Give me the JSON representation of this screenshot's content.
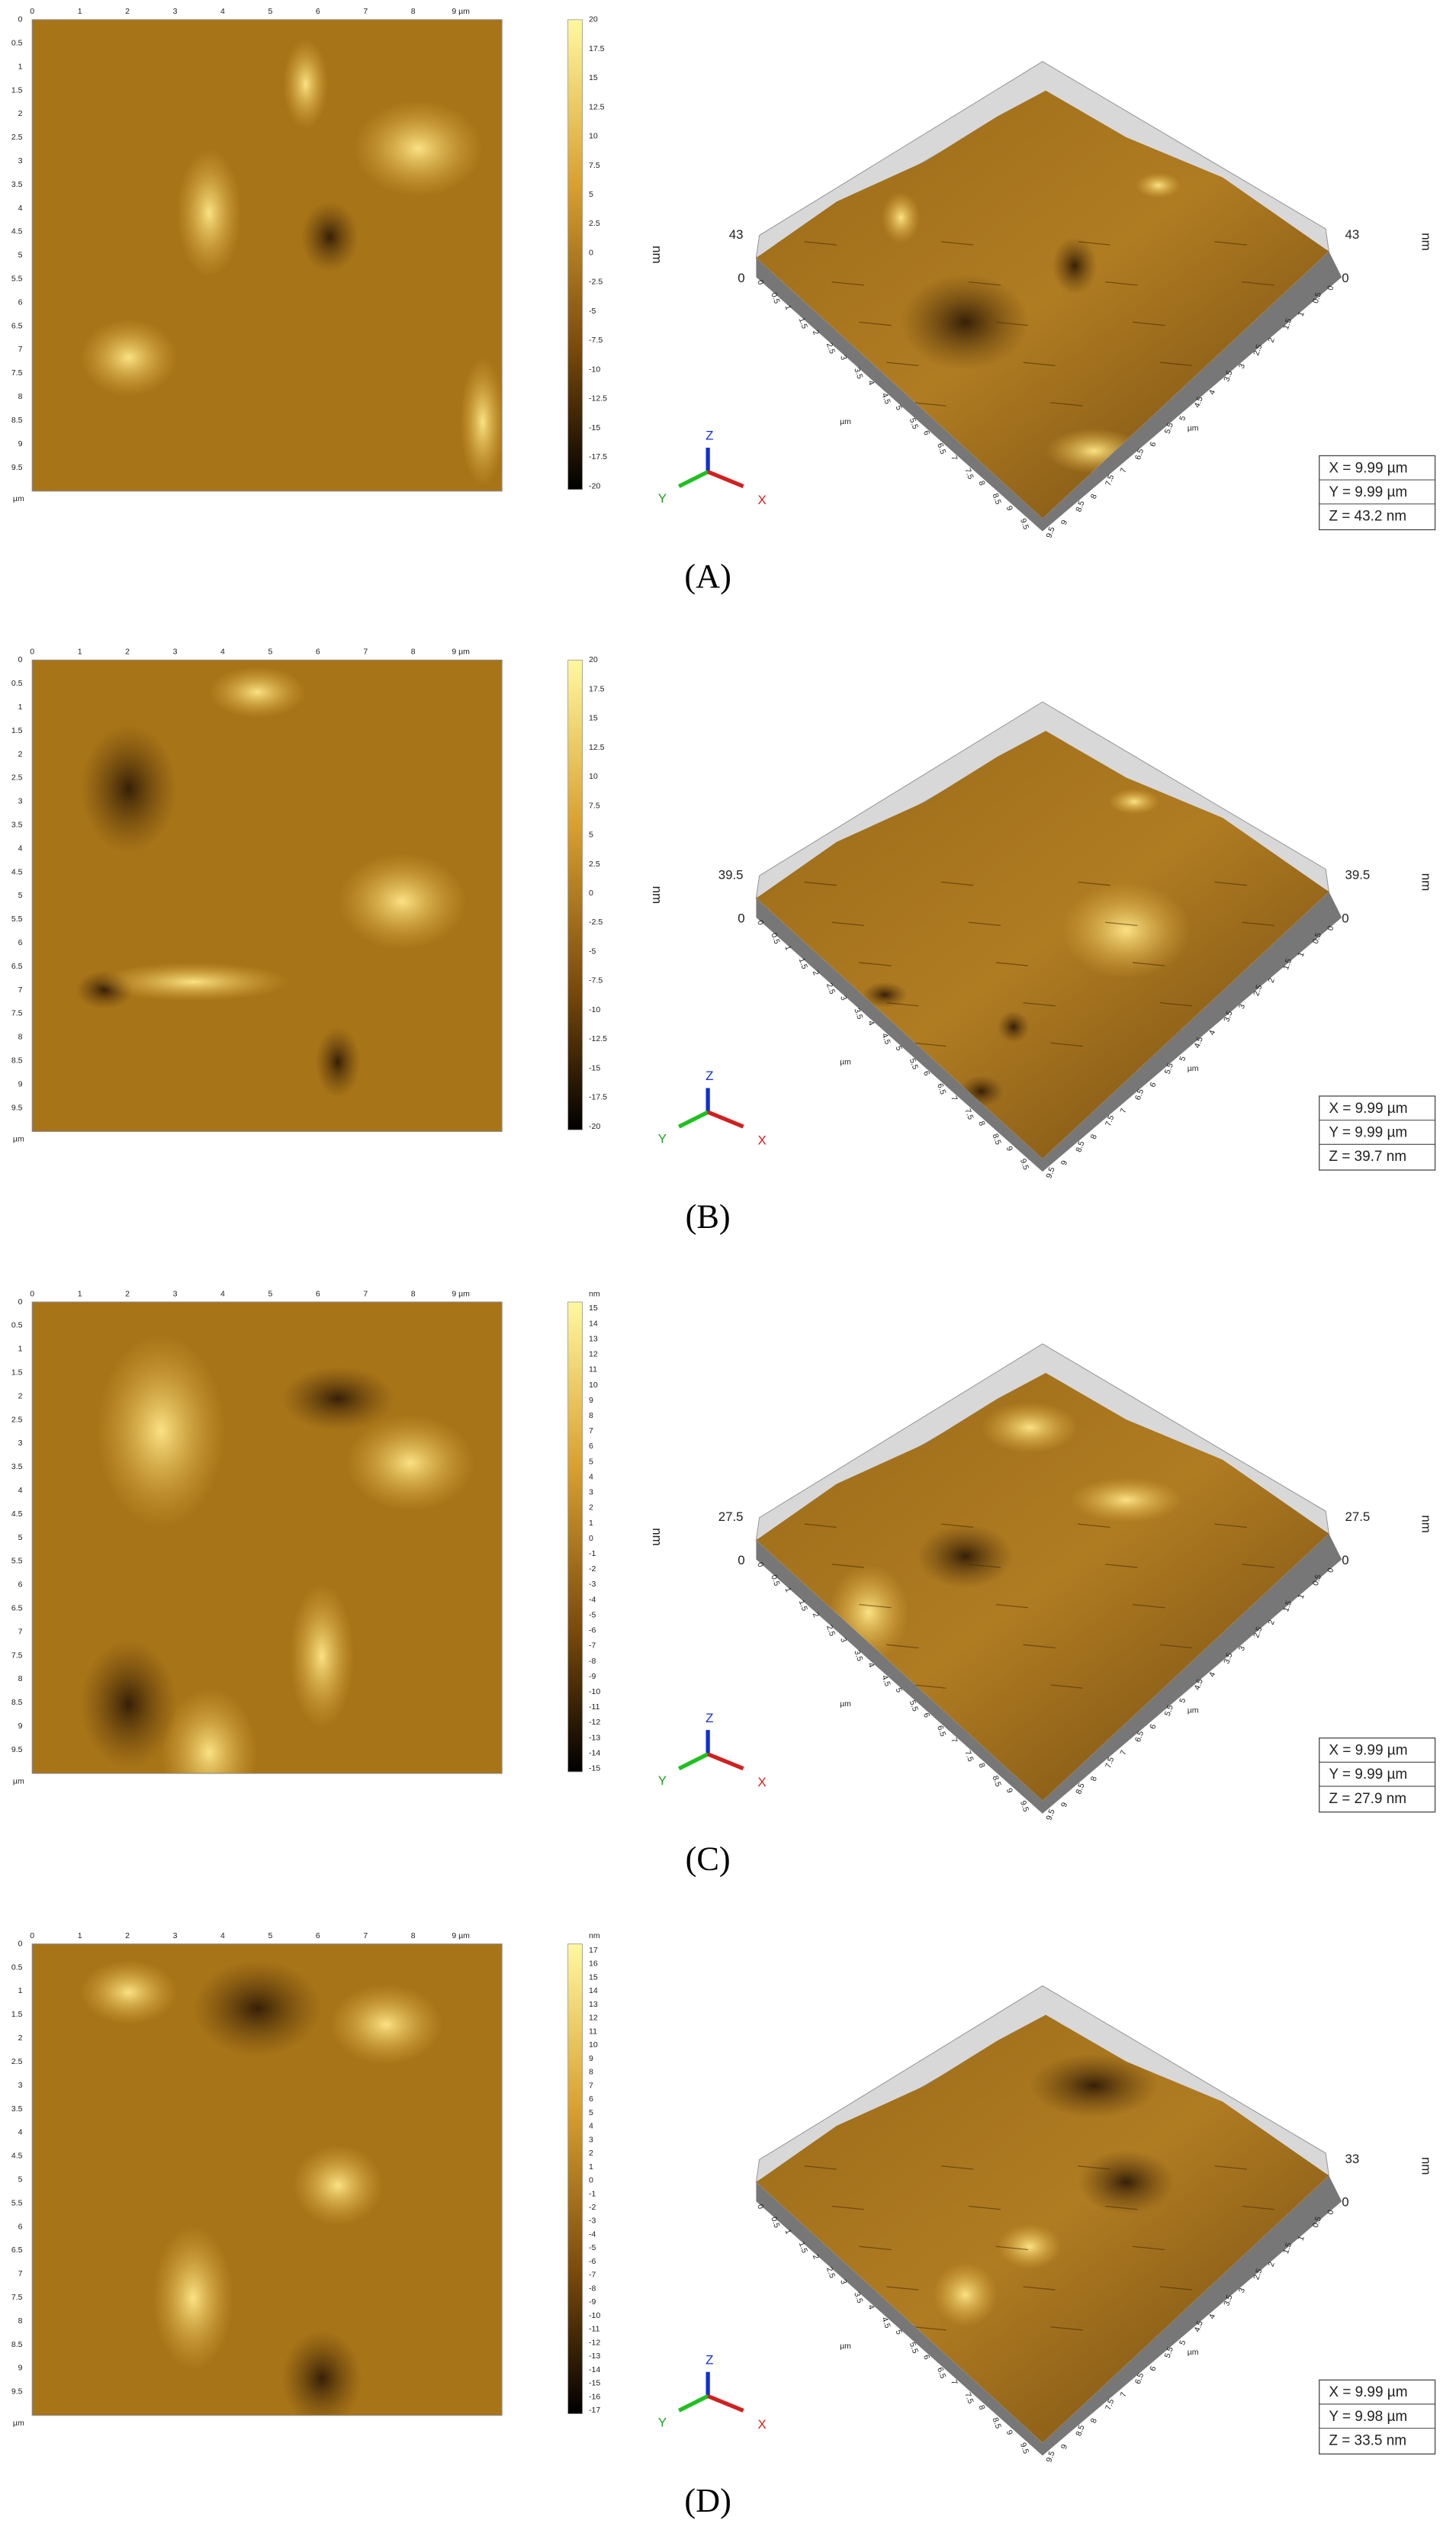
{
  "panels": [
    {
      "label": "(A)",
      "x_ticks": [
        0,
        1,
        2,
        3,
        4,
        5,
        6,
        7,
        8,
        "9 µm"
      ],
      "y_ticks": [
        0,
        0.5,
        1,
        1.5,
        2,
        2.5,
        3,
        3.5,
        4,
        4.5,
        5,
        5.5,
        6,
        6.5,
        7,
        7.5,
        8,
        8.5,
        9,
        9.5
      ],
      "axis_unit": "µm",
      "colorbar_ticks": [
        20,
        17.5,
        15,
        12.5,
        10,
        7.5,
        5,
        2.5,
        0,
        -2.5,
        -5,
        -7.5,
        -10,
        -12.5,
        -15,
        -17.5,
        -20
      ],
      "surface": {
        "left": {
          "top": 43,
          "zero": 0,
          "unit": "nm"
        },
        "right": {
          "top": 43,
          "zero": 0,
          "unit": "nm"
        },
        "left_edge_ticks": [
          0,
          0.5,
          1,
          1.5,
          2,
          2.5,
          3,
          3.5,
          4,
          4.5,
          5,
          5.5,
          6,
          6.5,
          7,
          7.5,
          8,
          8.5,
          9,
          9.5
        ],
        "right_edge_ticks": [
          9.5,
          9,
          8.5,
          8,
          7.5,
          7,
          6.5,
          6,
          5.5,
          5,
          4.5,
          4,
          3.5,
          3,
          2.5,
          2,
          1.5,
          1,
          0.5,
          0
        ],
        "edge_unit_left": "µm",
        "edge_unit_right": "µm",
        "triad": [
          "X",
          "Y",
          "Z"
        ],
        "info": [
          "X = 9.99 µm",
          "Y = 9.99 µm",
          "Z = 43.2 nm"
        ]
      }
    },
    {
      "label": "(B)",
      "x_ticks": [
        0,
        1,
        2,
        3,
        4,
        5,
        6,
        7,
        8,
        "9 µm"
      ],
      "y_ticks": [
        0,
        0.5,
        1,
        1.5,
        2,
        2.5,
        3,
        3.5,
        4,
        4.5,
        5,
        5.5,
        6,
        6.5,
        7,
        7.5,
        8,
        8.5,
        9,
        9.5
      ],
      "axis_unit": "µm",
      "colorbar_ticks": [
        20,
        17.5,
        15,
        12.5,
        10,
        7.5,
        5,
        2.5,
        0,
        -2.5,
        -5,
        -7.5,
        -10,
        -12.5,
        -15,
        -17.5,
        -20
      ],
      "surface": {
        "left": {
          "top": 39.5,
          "zero": 0,
          "unit": "nm"
        },
        "right": {
          "top": 39.5,
          "zero": 0,
          "unit": "nm"
        },
        "left_edge_ticks": [
          0,
          0.5,
          1,
          1.5,
          2,
          2.5,
          3,
          3.5,
          4,
          4.5,
          5,
          5.5,
          6,
          6.5,
          7,
          7.5,
          8,
          8.5,
          9,
          9.5
        ],
        "right_edge_ticks": [
          9.5,
          9,
          8.5,
          8,
          7.5,
          7,
          6.5,
          6,
          5.5,
          5,
          4.5,
          4,
          3.5,
          3,
          2.5,
          2,
          1.5,
          1,
          0.5,
          0
        ],
        "edge_unit_left": "µm",
        "edge_unit_right": "µm",
        "triad": [
          "X",
          "Y",
          "Z"
        ],
        "info": [
          "X = 9.99 µm",
          "Y = 9.99 µm",
          "Z = 39.7 nm"
        ]
      }
    },
    {
      "label": "(C)",
      "x_ticks": [
        0,
        1,
        2,
        3,
        4,
        5,
        6,
        7,
        8,
        "9 µm"
      ],
      "y_ticks": [
        0,
        0.5,
        1,
        1.5,
        2,
        2.5,
        3,
        3.5,
        4,
        4.5,
        5,
        5.5,
        6,
        6.5,
        7,
        7.5,
        8,
        8.5,
        9,
        9.5
      ],
      "axis_unit": "µm",
      "colorbar_unit": "nm",
      "colorbar_ticks": [
        15,
        14,
        13,
        12,
        11,
        10,
        9,
        8,
        7,
        6,
        5,
        4,
        3,
        2,
        1,
        0,
        -1,
        -2,
        -3,
        -4,
        -5,
        -6,
        -7,
        -8,
        -9,
        -10,
        -11,
        -12,
        -13,
        -14,
        -15
      ],
      "surface": {
        "left": {
          "top": 27.5,
          "zero": 0,
          "unit": "nm"
        },
        "right": {
          "top": 27.5,
          "zero": 0,
          "unit": "nm"
        },
        "left_edge_ticks": [
          0,
          0.5,
          1,
          1.5,
          2,
          2.5,
          3,
          3.5,
          4,
          4.5,
          5,
          5.5,
          6,
          6.5,
          7,
          7.5,
          8,
          8.5,
          9,
          9.5
        ],
        "right_edge_ticks": [
          9.5,
          9,
          8.5,
          8,
          7.5,
          7,
          6.5,
          6,
          5.5,
          5,
          4.5,
          4,
          3.5,
          3,
          2.5,
          2,
          1.5,
          1,
          0.5,
          0
        ],
        "edge_unit_left": "µm",
        "edge_unit_right": "µm",
        "triad": [
          "X",
          "Y",
          "Z"
        ],
        "info": [
          "X = 9.99 µm",
          "Y = 9.99 µm",
          "Z = 27.9 nm"
        ]
      }
    },
    {
      "label": "(D)",
      "x_ticks": [
        0,
        1,
        2,
        3,
        4,
        5,
        6,
        7,
        8,
        "9 µm"
      ],
      "y_ticks": [
        0,
        0.5,
        1,
        1.5,
        2,
        2.5,
        3,
        3.5,
        4,
        4.5,
        5,
        5.5,
        6,
        6.5,
        7,
        7.5,
        8,
        8.5,
        9,
        9.5
      ],
      "axis_unit": "µm",
      "colorbar_unit": "nm",
      "colorbar_ticks": [
        17,
        16,
        15,
        14,
        13,
        12,
        11,
        10,
        9,
        8,
        7,
        6,
        5,
        4,
        3,
        2,
        1,
        0,
        -1,
        -2,
        -3,
        -4,
        -5,
        -6,
        -7,
        -8,
        -9,
        -10,
        -11,
        -12,
        -13,
        -14,
        -15,
        -16,
        -17
      ],
      "surface": {
        "right": {
          "top": 33,
          "zero": 0,
          "unit": "nm"
        },
        "left_edge_ticks": [
          0,
          0.5,
          1,
          1.5,
          2,
          2.5,
          3,
          3.5,
          4,
          4.5,
          5,
          5.5,
          6,
          6.5,
          7,
          7.5,
          8,
          8.5,
          9,
          9.5
        ],
        "right_edge_ticks": [
          9.5,
          9,
          8.5,
          8,
          7.5,
          7,
          6.5,
          6,
          5.5,
          5,
          4.5,
          4,
          3.5,
          3,
          2.5,
          2,
          1.5,
          1,
          0.5,
          0
        ],
        "edge_unit_left": "µm",
        "edge_unit_right": "µm",
        "triad": [
          "X",
          "Y",
          "Z"
        ],
        "info": [
          "X = 9.99 µm",
          "Y = 9.98 µm",
          "Z = 33.5 nm"
        ]
      }
    }
  ]
}
